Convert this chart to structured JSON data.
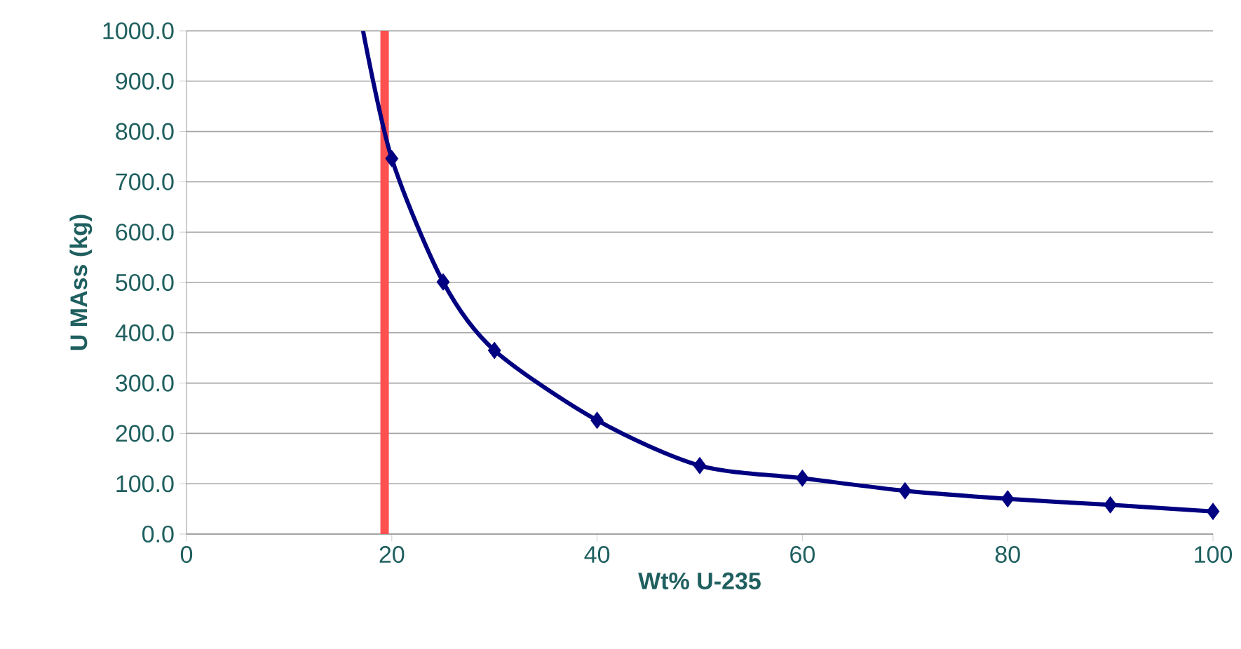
{
  "chart_data": {
    "type": "scatter",
    "xlabel": "Wt% U-235",
    "ylabel": "U MAss (kg)",
    "xlim": [
      0,
      100
    ],
    "ylim": [
      0,
      1000
    ],
    "xticks": [
      0,
      20,
      40,
      60,
      80,
      100
    ],
    "yticks": [
      {
        "value": 0,
        "label": "0.0"
      },
      {
        "value": 100,
        "label": "100.0"
      },
      {
        "value": 200,
        "label": "200.0"
      },
      {
        "value": 300,
        "label": "300.0"
      },
      {
        "value": 400,
        "label": "400.0"
      },
      {
        "value": 500,
        "label": "500.0"
      },
      {
        "value": 600,
        "label": "600.0"
      },
      {
        "value": 700,
        "label": "700.0"
      },
      {
        "value": 800,
        "label": "800.0"
      },
      {
        "value": 900,
        "label": "900.0"
      },
      {
        "value": 1000,
        "label": "1000.0"
      }
    ],
    "grid": "y",
    "series": [
      {
        "type": "line",
        "color": "#000080",
        "marker": "none",
        "x": [
          17.2,
          20,
          25,
          30,
          40,
          50,
          60,
          70,
          80,
          90,
          100
        ],
        "values": [
          1000,
          746,
          501,
          365,
          226,
          136,
          111,
          86,
          70,
          58,
          45
        ]
      },
      {
        "color": "#000080",
        "marker": "diamond",
        "x": [
          20,
          25,
          30,
          40,
          50,
          60,
          70,
          80,
          90,
          100
        ],
        "values": [
          746,
          501,
          365,
          226,
          136,
          111,
          86,
          70,
          58,
          45
        ]
      }
    ],
    "ref_lines": [
      {
        "axis": "x",
        "value": 19.3,
        "color": "#ff5050"
      }
    ]
  }
}
